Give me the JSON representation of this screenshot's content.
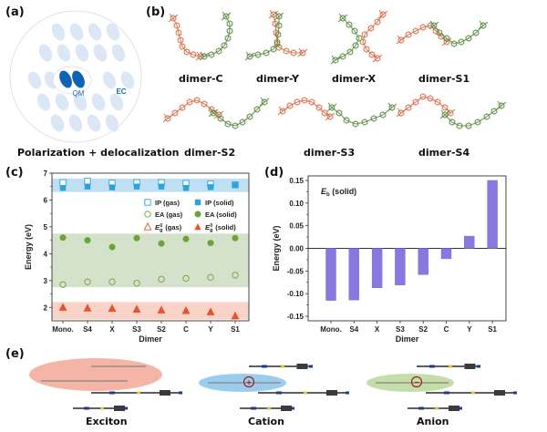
{
  "panels": {
    "a": {
      "label": "(a)",
      "qm_label": "QM",
      "ec_label": "EC",
      "caption": "Polarization + delocalization"
    },
    "b": {
      "label": "(b)",
      "dimers": [
        "dimer-C",
        "dimer-Y",
        "dimer-X",
        "dimer-S1",
        "dimer-S2",
        "dimer-S3",
        "dimer-S4"
      ]
    },
    "c": {
      "label": "(c)"
    },
    "d": {
      "label": "(d)"
    },
    "e": {
      "label": "(e)",
      "states": [
        {
          "name": "Exciton",
          "color": "#f2a898"
        },
        {
          "name": "Cation",
          "color": "#8ec8ee",
          "charge": "+"
        },
        {
          "name": "Anion",
          "color": "#bcd9a2",
          "charge": "−"
        }
      ]
    }
  },
  "colors": {
    "ip": "#2aa3df",
    "ip_band": "#bfe0f3",
    "ea": "#6aa338",
    "ea_band": "#d4e2cc",
    "eg": "#e2552e",
    "eg_band": "#f9d3c8",
    "bar": "#8a78e0",
    "orange_mol": "#d9704e",
    "green_mol": "#5f8f47"
  },
  "chart_data": [
    {
      "type": "scatter",
      "panel": "c",
      "title": "",
      "xlabel": "Dimer",
      "ylabel": "Energy (eV)",
      "categories": [
        "Mono.",
        "S4",
        "X",
        "S3",
        "S2",
        "C",
        "Y",
        "S1"
      ],
      "ylim": [
        1.5,
        7
      ],
      "yticks": [
        2,
        3,
        4,
        5,
        6,
        7
      ],
      "bands": [
        {
          "name": "IP",
          "range": [
            6.3,
            6.8
          ]
        },
        {
          "name": "EA",
          "range": [
            2.75,
            4.75
          ]
        },
        {
          "name": "Eg",
          "range": [
            1.55,
            2.2
          ]
        }
      ],
      "legend": [
        "IP (gas)",
        "IP (solid)",
        "EA (gas)",
        "EA (solid)",
        "E_g^0 (gas)",
        "E_g^0 (solid)"
      ],
      "legend_text": {
        "ip_gas": "IP  (gas)",
        "ip_solid": "IP  (solid)",
        "ea_gas": "EA (gas)",
        "ea_solid": "EA (solid)",
        "eg_sym": "E",
        "eg_sub": "g",
        "eg_sup": "0",
        "eg_gas": "(gas)",
        "eg_solid": "(solid)"
      },
      "legend_position": "top-right",
      "series": [
        {
          "name": "IP (gas)",
          "marker": "open-square",
          "values": [
            6.65,
            6.7,
            6.63,
            6.65,
            6.65,
            6.62,
            6.6,
            6.57
          ]
        },
        {
          "name": "IP (solid)",
          "marker": "filled-square",
          "values": [
            6.45,
            6.5,
            6.47,
            6.5,
            6.5,
            6.45,
            6.48,
            6.55
          ]
        },
        {
          "name": "EA (gas)",
          "marker": "open-circle",
          "values": [
            2.85,
            2.95,
            2.95,
            2.9,
            3.05,
            3.08,
            3.12,
            3.2
          ]
        },
        {
          "name": "EA (solid)",
          "marker": "filled-circle",
          "values": [
            4.6,
            4.5,
            4.25,
            4.58,
            4.38,
            4.55,
            4.4,
            4.58
          ]
        },
        {
          "name": "E_g^0 (gas)",
          "marker": "open-triangle",
          "values": [
            2.0,
            1.97,
            1.96,
            1.93,
            1.9,
            1.88,
            1.83,
            1.68
          ]
        },
        {
          "name": "E_g^0 (solid)",
          "marker": "filled-triangle",
          "values": [
            2.0,
            1.97,
            1.96,
            1.93,
            1.9,
            1.88,
            1.83,
            1.68
          ]
        }
      ]
    },
    {
      "type": "bar",
      "panel": "d",
      "title": "E_b (solid)",
      "title_parts": {
        "sym": "E",
        "sub": "b",
        "rest": " (solid)"
      },
      "xlabel": "Dimer",
      "ylabel": "Energy (eV)",
      "categories": [
        "Mono.",
        "S4",
        "X",
        "S3",
        "S2",
        "C",
        "Y",
        "S1"
      ],
      "values": [
        -0.115,
        -0.114,
        -0.087,
        -0.081,
        -0.058,
        -0.023,
        0.027,
        0.15
      ],
      "ylim": [
        -0.16,
        0.16
      ],
      "yticks": [
        "0.15",
        "0.10",
        "0.05",
        "0.00",
        "-0.05",
        "-0.10",
        "-0.15"
      ],
      "ytick_values": [
        0.15,
        0.1,
        0.05,
        0.0,
        -0.05,
        -0.1,
        -0.15
      ]
    }
  ]
}
